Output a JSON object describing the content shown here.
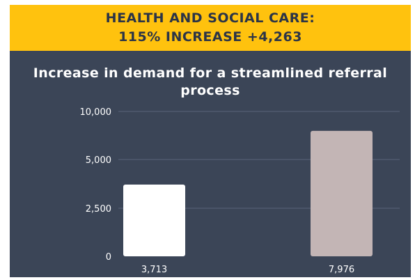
{
  "banner": {
    "line1": "HEALTH AND SOCIAL CARE:",
    "line2": "115% INCREASE +4,263"
  },
  "colors": {
    "background": "#3b4557",
    "banner": "#ffc20e",
    "bar1": "#ffffff",
    "bar2": "#c3b5b5",
    "gridline": "#5a6478"
  },
  "chart_data": {
    "type": "bar",
    "title": "Increase in demand for a streamlined referral process",
    "categories": [
      "",
      ""
    ],
    "values": [
      3713,
      7976
    ],
    "data_labels": [
      "3,713",
      "7,976"
    ],
    "bar_colors": [
      "#ffffff",
      "#c3b5b5"
    ],
    "yticks": [
      0,
      2500,
      5000,
      10000
    ],
    "ytick_labels": [
      "0",
      "2,500",
      "5,000",
      "10,000"
    ],
    "ylim": [
      0,
      10000
    ],
    "grid": true,
    "legend": "none"
  }
}
